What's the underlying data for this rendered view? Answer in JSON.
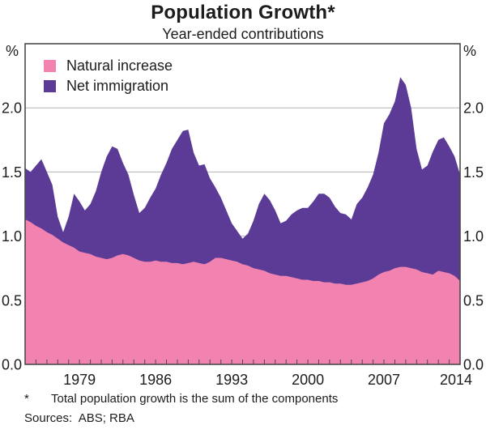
{
  "title": "Population Growth*",
  "subtitle": "Year-ended contributions",
  "unit_left": "%",
  "unit_right": "%",
  "legend": [
    {
      "label": "Natural increase",
      "color": "#f283b1"
    },
    {
      "label": "Net immigration",
      "color": "#5b3b96"
    }
  ],
  "footnote": {
    "marker": "*",
    "text": "Total population growth is the sum of the components"
  },
  "sources": "Sources:  ABS; RBA",
  "colors": {
    "grid": "#b3b3b3",
    "axis": "#4a4a4a",
    "text": "#1c1c1c",
    "background": "#ffffff"
  },
  "chart_data": {
    "type": "area",
    "stacked": true,
    "title": "Population Growth*",
    "subtitle": "Year-ended contributions",
    "unit": "% (year-ended contribution to population growth)",
    "xlim": [
      1974,
      2014
    ],
    "ylim": [
      0,
      2.5
    ],
    "grid": true,
    "legend_position": "top-left",
    "y_ticks": [
      0,
      0.5,
      1,
      1.5,
      2
    ],
    "y_tick_labels": [
      "0.0",
      "0.5",
      "1.0",
      "1.5",
      "2.0"
    ],
    "x_tick_years": [
      1979,
      1986,
      1993,
      2000,
      2007,
      2014
    ],
    "x_tick_labels": [
      "1979",
      "1986",
      "1993",
      "2000",
      "2007",
      "2014"
    ],
    "minor_x_tick_interval_years": 1,
    "x": [
      1974,
      1974.5,
      1975,
      1975.5,
      1976,
      1976.5,
      1977,
      1977.5,
      1978,
      1978.5,
      1979,
      1979.5,
      1980,
      1980.5,
      1981,
      1981.5,
      1982,
      1982.5,
      1983,
      1983.5,
      1984,
      1984.5,
      1985,
      1985.5,
      1986,
      1986.5,
      1987,
      1987.5,
      1988,
      1988.5,
      1989,
      1989.5,
      1990,
      1990.5,
      1991,
      1991.5,
      1992,
      1992.5,
      1993,
      1993.5,
      1994,
      1994.5,
      1995,
      1995.5,
      1996,
      1996.5,
      1997,
      1997.5,
      1998,
      1998.5,
      1999,
      1999.5,
      2000,
      2000.5,
      2001,
      2001.5,
      2002,
      2002.5,
      2003,
      2003.5,
      2004,
      2004.5,
      2005,
      2005.5,
      2006,
      2006.5,
      2007,
      2007.5,
      2008,
      2008.5,
      2009,
      2009.5,
      2010,
      2010.5,
      2011,
      2011.5,
      2012,
      2012.5,
      2013,
      2013.5,
      2014
    ],
    "series": [
      {
        "name": "Natural increase",
        "color": "#f283b1",
        "values": [
          1.13,
          1.11,
          1.08,
          1.06,
          1.03,
          1.01,
          0.98,
          0.95,
          0.93,
          0.91,
          0.88,
          0.87,
          0.86,
          0.84,
          0.83,
          0.82,
          0.83,
          0.85,
          0.86,
          0.85,
          0.83,
          0.81,
          0.8,
          0.8,
          0.81,
          0.8,
          0.8,
          0.79,
          0.79,
          0.78,
          0.79,
          0.8,
          0.79,
          0.78,
          0.8,
          0.83,
          0.83,
          0.82,
          0.81,
          0.8,
          0.78,
          0.77,
          0.75,
          0.74,
          0.73,
          0.71,
          0.7,
          0.69,
          0.69,
          0.68,
          0.67,
          0.66,
          0.66,
          0.65,
          0.65,
          0.64,
          0.64,
          0.63,
          0.63,
          0.62,
          0.62,
          0.63,
          0.64,
          0.65,
          0.67,
          0.7,
          0.72,
          0.73,
          0.75,
          0.76,
          0.76,
          0.75,
          0.74,
          0.72,
          0.71,
          0.7,
          0.73,
          0.72,
          0.71,
          0.69,
          0.65
        ]
      },
      {
        "name": "Net immigration",
        "color": "#5b3b96",
        "values": [
          0.4,
          0.39,
          0.47,
          0.54,
          0.47,
          0.39,
          0.17,
          0.08,
          0.22,
          0.42,
          0.39,
          0.33,
          0.39,
          0.51,
          0.67,
          0.8,
          0.87,
          0.83,
          0.71,
          0.63,
          0.49,
          0.37,
          0.42,
          0.5,
          0.56,
          0.68,
          0.77,
          0.89,
          0.96,
          1.04,
          1.04,
          0.85,
          0.76,
          0.78,
          0.65,
          0.55,
          0.47,
          0.38,
          0.29,
          0.24,
          0.2,
          0.25,
          0.37,
          0.51,
          0.6,
          0.57,
          0.5,
          0.41,
          0.43,
          0.49,
          0.53,
          0.56,
          0.56,
          0.62,
          0.68,
          0.69,
          0.66,
          0.6,
          0.55,
          0.55,
          0.51,
          0.62,
          0.66,
          0.73,
          0.81,
          0.95,
          1.16,
          1.22,
          1.3,
          1.48,
          1.42,
          1.25,
          0.94,
          0.8,
          0.84,
          0.96,
          1.02,
          1.05,
          0.99,
          0.93,
          0.83
        ]
      }
    ]
  }
}
